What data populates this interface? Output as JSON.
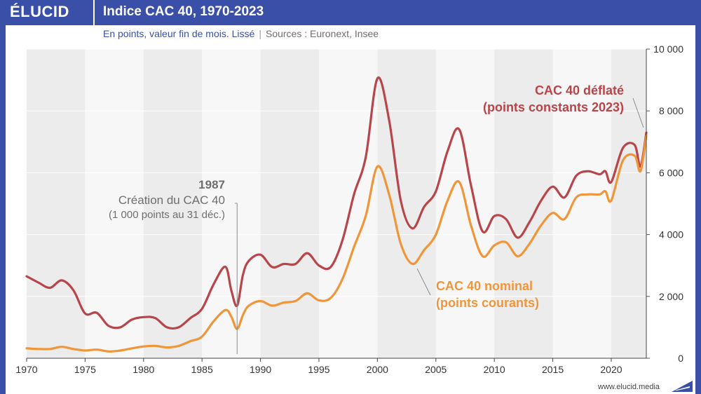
{
  "header": {
    "brand": "ÉLUCID",
    "title": "Indice CAC 40, 1970-2023",
    "subtitle": "En points, valeur fin de mois. Lissé",
    "separator": "|",
    "sources": "Sources : Euronext, Insee"
  },
  "footer": {
    "url": "www.elucid.media"
  },
  "colors": {
    "brand_blue": "#3a4fa8",
    "deflated": "#b84549",
    "nominal": "#f0963a",
    "annotation": "#6e6e6e"
  },
  "chart_data": {
    "type": "line",
    "title": "Indice CAC 40, 1970-2023",
    "subtitle": "En points, valeur fin de mois. Lissé",
    "xlim": [
      1970,
      2023
    ],
    "ylim": [
      0,
      10000
    ],
    "x_ticks": [
      1970,
      1975,
      1980,
      1985,
      1990,
      1995,
      2000,
      2005,
      2010,
      2015,
      2020
    ],
    "y_ticks": [
      0,
      2000,
      4000,
      6000,
      8000,
      10000
    ],
    "y_tick_labels": [
      "0",
      "2 000",
      "4 000",
      "6 000",
      "8 000",
      "10 000"
    ],
    "y_axis_side": "right",
    "background_bands": "alternating 5-year bands",
    "series": [
      {
        "name": "CAC 40 déflaté (points constants 2023)",
        "label_lines": [
          "CAC 40 déflaté",
          "(points constants 2023)"
        ],
        "color": "#b84549",
        "points": [
          [
            1970,
            2650
          ],
          [
            1971,
            2450
          ],
          [
            1972,
            2280
          ],
          [
            1973,
            2520
          ],
          [
            1974,
            2200
          ],
          [
            1975,
            1450
          ],
          [
            1976,
            1470
          ],
          [
            1977,
            1050
          ],
          [
            1978,
            1000
          ],
          [
            1979,
            1250
          ],
          [
            1980,
            1330
          ],
          [
            1981,
            1300
          ],
          [
            1982,
            1000
          ],
          [
            1983,
            1000
          ],
          [
            1984,
            1300
          ],
          [
            1985,
            1600
          ],
          [
            1986,
            2400
          ],
          [
            1987,
            2960
          ],
          [
            1987.5,
            2200
          ],
          [
            1988,
            1700
          ],
          [
            1988.5,
            2700
          ],
          [
            1989,
            3150
          ],
          [
            1990,
            3350
          ],
          [
            1991,
            2950
          ],
          [
            1992,
            3050
          ],
          [
            1993,
            3050
          ],
          [
            1994,
            3400
          ],
          [
            1995,
            3000
          ],
          [
            1996,
            2950
          ],
          [
            1997,
            3800
          ],
          [
            1998,
            5300
          ],
          [
            1999,
            6500
          ],
          [
            2000,
            9050
          ],
          [
            2001,
            7700
          ],
          [
            2002,
            5100
          ],
          [
            2003,
            4200
          ],
          [
            2004,
            4900
          ],
          [
            2005,
            5400
          ],
          [
            2006,
            6700
          ],
          [
            2007,
            7400
          ],
          [
            2008,
            5600
          ],
          [
            2009,
            4100
          ],
          [
            2010,
            4600
          ],
          [
            2011,
            4500
          ],
          [
            2012,
            3900
          ],
          [
            2013,
            4400
          ],
          [
            2014,
            5100
          ],
          [
            2015,
            5550
          ],
          [
            2016,
            5200
          ],
          [
            2017,
            5900
          ],
          [
            2018,
            6050
          ],
          [
            2019,
            5950
          ],
          [
            2019.5,
            6050
          ],
          [
            2020,
            5700
          ],
          [
            2021,
            6800
          ],
          [
            2022,
            6900
          ],
          [
            2022.5,
            6200
          ],
          [
            2023,
            7300
          ]
        ]
      },
      {
        "name": "CAC 40 nominal (points courants)",
        "label_lines": [
          "CAC 40 nominal",
          "(points courants)"
        ],
        "color": "#f0963a",
        "points": [
          [
            1970,
            320
          ],
          [
            1971,
            300
          ],
          [
            1972,
            300
          ],
          [
            1973,
            370
          ],
          [
            1974,
            300
          ],
          [
            1975,
            250
          ],
          [
            1976,
            280
          ],
          [
            1977,
            220
          ],
          [
            1978,
            250
          ],
          [
            1979,
            320
          ],
          [
            1980,
            380
          ],
          [
            1981,
            400
          ],
          [
            1982,
            350
          ],
          [
            1983,
            400
          ],
          [
            1984,
            550
          ],
          [
            1985,
            700
          ],
          [
            1986,
            1200
          ],
          [
            1987,
            1560
          ],
          [
            1987.5,
            1350
          ],
          [
            1988,
            950
          ],
          [
            1988.5,
            1400
          ],
          [
            1989,
            1700
          ],
          [
            1990,
            1850
          ],
          [
            1991,
            1700
          ],
          [
            1992,
            1800
          ],
          [
            1993,
            1850
          ],
          [
            1994,
            2100
          ],
          [
            1995,
            1870
          ],
          [
            1996,
            1950
          ],
          [
            1997,
            2550
          ],
          [
            1998,
            3600
          ],
          [
            1999,
            4600
          ],
          [
            2000,
            6200
          ],
          [
            2001,
            5300
          ],
          [
            2002,
            3700
          ],
          [
            2003,
            3050
          ],
          [
            2004,
            3500
          ],
          [
            2005,
            4000
          ],
          [
            2006,
            5100
          ],
          [
            2007,
            5700
          ],
          [
            2008,
            4300
          ],
          [
            2009,
            3300
          ],
          [
            2010,
            3650
          ],
          [
            2011,
            3750
          ],
          [
            2012,
            3300
          ],
          [
            2013,
            3700
          ],
          [
            2014,
            4300
          ],
          [
            2015,
            4700
          ],
          [
            2016,
            4500
          ],
          [
            2017,
            5200
          ],
          [
            2018,
            5300
          ],
          [
            2019,
            5300
          ],
          [
            2019.5,
            5400
          ],
          [
            2020,
            5100
          ],
          [
            2021,
            6400
          ],
          [
            2022,
            6550
          ],
          [
            2022.5,
            6050
          ],
          [
            2023,
            7200
          ]
        ]
      }
    ],
    "annotations": [
      {
        "x": 1988,
        "lines": [
          "1987",
          "Création du CAC 40",
          "(1 000 points au 31 déc.)"
        ]
      }
    ]
  }
}
